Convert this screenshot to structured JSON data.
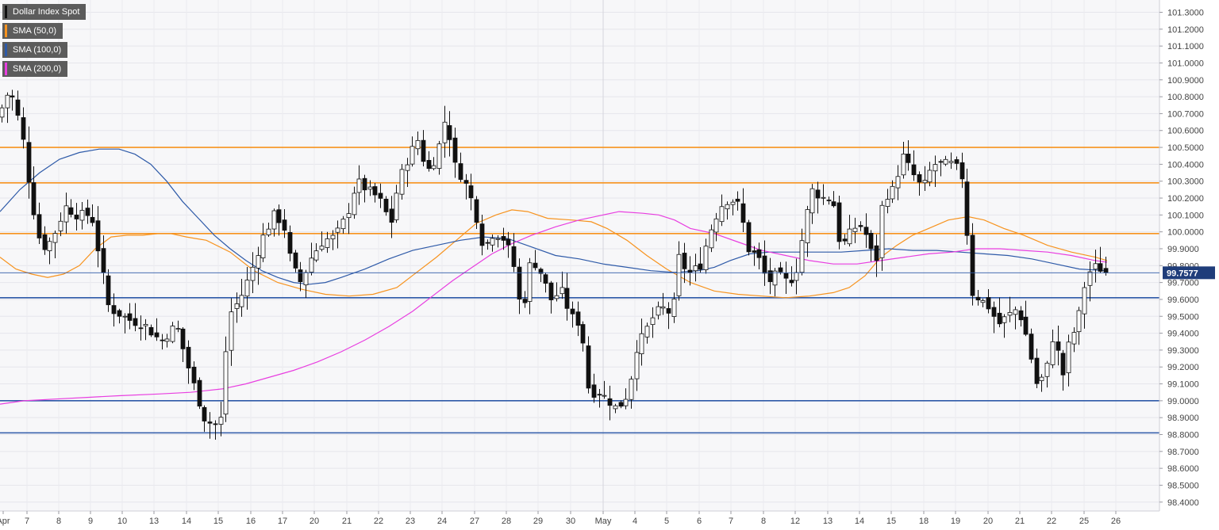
{
  "chart_data": {
    "type": "candlestick",
    "title": "Dollar Index Spot",
    "legend": [
      {
        "label": "Dollar Index Spot",
        "color": "#222222"
      },
      {
        "label": "SMA (50,0)",
        "color": "#f7931e"
      },
      {
        "label": "SMA (100,0)",
        "color": "#2e5aa8"
      },
      {
        "label": "SMA (200,0)",
        "color": "#e83ee0"
      }
    ],
    "y_axis": {
      "ylim": [
        98.33,
        101.37
      ],
      "ticks": [
        "101.3000",
        "101.2000",
        "101.1000",
        "101.0000",
        "100.9000",
        "100.8000",
        "100.7000",
        "100.6000",
        "100.5000",
        "100.4000",
        "100.3000",
        "100.2000",
        "100.1000",
        "100.0000",
        "99.9000",
        "99.8000",
        "99.7000",
        "99.6000",
        "99.5000",
        "99.4000",
        "99.3000",
        "99.2000",
        "99.1000",
        "99.0000",
        "98.9000",
        "98.8000",
        "98.7000",
        "98.6000",
        "98.5000",
        "98.4000"
      ]
    },
    "x_axis": {
      "labels": [
        "Apr",
        "7",
        "8",
        "9",
        "10",
        "13",
        "14",
        "15",
        "16",
        "17",
        "20",
        "21",
        "22",
        "23",
        "24",
        "27",
        "28",
        "29",
        "30",
        "May",
        "4",
        "5",
        "6",
        "7",
        "8",
        "12",
        "13",
        "14",
        "15",
        "18",
        "19",
        "20",
        "21",
        "22",
        "25",
        "26"
      ],
      "grid": "vertical at each date",
      "month_separator": "May"
    },
    "current_price": "99.7577",
    "horizontal_levels": [
      {
        "value": 100.5,
        "color": "#f7931e"
      },
      {
        "value": 100.29,
        "color": "#f7931e"
      },
      {
        "value": 99.99,
        "color": "#f7931e"
      },
      {
        "value": 99.61,
        "color": "#2e5aa8"
      },
      {
        "value": 99.0,
        "color": "#2e5aa8"
      },
      {
        "value": 98.81,
        "color": "#2e5aa8"
      }
    ],
    "sma_series": [
      {
        "name": "SMA (50,0)",
        "color": "#f7931e",
        "points": [
          [
            0,
            99.85
          ],
          [
            20,
            99.78
          ],
          [
            40,
            99.75
          ],
          [
            60,
            99.73
          ],
          [
            80,
            99.75
          ],
          [
            100,
            99.8
          ],
          [
            120,
            99.9
          ],
          [
            140,
            99.97
          ],
          [
            160,
            99.98
          ],
          [
            180,
            99.98
          ],
          [
            200,
            99.99
          ],
          [
            215,
            99.99
          ],
          [
            235,
            99.97
          ],
          [
            260,
            99.95
          ],
          [
            290,
            99.88
          ],
          [
            320,
            99.77
          ],
          [
            350,
            99.7
          ],
          [
            380,
            99.66
          ],
          [
            410,
            99.63
          ],
          [
            440,
            99.62
          ],
          [
            470,
            99.63
          ],
          [
            500,
            99.67
          ],
          [
            525,
            99.76
          ],
          [
            550,
            99.85
          ],
          [
            575,
            99.95
          ],
          [
            600,
            100.05
          ],
          [
            625,
            100.1
          ],
          [
            645,
            100.13
          ],
          [
            665,
            100.12
          ],
          [
            690,
            100.08
          ],
          [
            720,
            100.07
          ],
          [
            745,
            100.06
          ],
          [
            765,
            100.02
          ],
          [
            790,
            99.95
          ],
          [
            815,
            99.86
          ],
          [
            840,
            99.78
          ],
          [
            870,
            99.7
          ],
          [
            900,
            99.65
          ],
          [
            930,
            99.63
          ],
          [
            960,
            99.62
          ],
          [
            990,
            99.61
          ],
          [
            1020,
            99.62
          ],
          [
            1050,
            99.64
          ],
          [
            1070,
            99.67
          ],
          [
            1090,
            99.74
          ],
          [
            1110,
            99.85
          ],
          [
            1130,
            99.92
          ],
          [
            1150,
            99.98
          ],
          [
            1170,
            100.02
          ],
          [
            1195,
            100.07
          ],
          [
            1220,
            100.09
          ],
          [
            1240,
            100.07
          ],
          [
            1265,
            100.02
          ],
          [
            1290,
            99.98
          ],
          [
            1320,
            99.92
          ],
          [
            1350,
            99.88
          ],
          [
            1380,
            99.85
          ],
          [
            1395,
            99.83
          ]
        ]
      },
      {
        "name": "SMA (100,0)",
        "color": "#2e5aa8",
        "points": [
          [
            0,
            100.12
          ],
          [
            25,
            100.25
          ],
          [
            50,
            100.35
          ],
          [
            75,
            100.43
          ],
          [
            100,
            100.47
          ],
          [
            125,
            100.49
          ],
          [
            150,
            100.49
          ],
          [
            170,
            100.46
          ],
          [
            190,
            100.4
          ],
          [
            210,
            100.3
          ],
          [
            230,
            100.18
          ],
          [
            250,
            100.08
          ],
          [
            270,
            99.98
          ],
          [
            290,
            99.9
          ],
          [
            310,
            99.83
          ],
          [
            330,
            99.77
          ],
          [
            350,
            99.73
          ],
          [
            370,
            99.7
          ],
          [
            390,
            99.69
          ],
          [
            410,
            99.7
          ],
          [
            430,
            99.73
          ],
          [
            460,
            99.78
          ],
          [
            490,
            99.84
          ],
          [
            520,
            99.89
          ],
          [
            550,
            99.92
          ],
          [
            580,
            99.95
          ],
          [
            610,
            99.97
          ],
          [
            640,
            99.96
          ],
          [
            670,
            99.91
          ],
          [
            700,
            99.86
          ],
          [
            730,
            99.84
          ],
          [
            760,
            99.81
          ],
          [
            790,
            99.79
          ],
          [
            820,
            99.77
          ],
          [
            850,
            99.76
          ],
          [
            880,
            99.77
          ],
          [
            900,
            99.79
          ],
          [
            920,
            99.83
          ],
          [
            945,
            99.87
          ],
          [
            970,
            99.88
          ],
          [
            1000,
            99.88
          ],
          [
            1030,
            99.88
          ],
          [
            1060,
            99.88
          ],
          [
            1090,
            99.89
          ],
          [
            1120,
            99.9
          ],
          [
            1150,
            99.89
          ],
          [
            1180,
            99.89
          ],
          [
            1210,
            99.88
          ],
          [
            1240,
            99.87
          ],
          [
            1270,
            99.86
          ],
          [
            1300,
            99.84
          ],
          [
            1330,
            99.81
          ],
          [
            1360,
            99.78
          ],
          [
            1395,
            99.77
          ]
        ]
      },
      {
        "name": "SMA (200,0)",
        "color": "#e83ee0",
        "points": [
          [
            0,
            98.98
          ],
          [
            30,
            99.0
          ],
          [
            70,
            99.01
          ],
          [
            110,
            99.02
          ],
          [
            150,
            99.03
          ],
          [
            200,
            99.04
          ],
          [
            240,
            99.05
          ],
          [
            280,
            99.07
          ],
          [
            310,
            99.1
          ],
          [
            340,
            99.14
          ],
          [
            370,
            99.18
          ],
          [
            400,
            99.23
          ],
          [
            430,
            99.29
          ],
          [
            460,
            99.36
          ],
          [
            490,
            99.44
          ],
          [
            520,
            99.53
          ],
          [
            545,
            99.62
          ],
          [
            570,
            99.71
          ],
          [
            595,
            99.79
          ],
          [
            620,
            99.87
          ],
          [
            645,
            99.93
          ],
          [
            670,
            99.98
          ],
          [
            700,
            100.03
          ],
          [
            730,
            100.07
          ],
          [
            760,
            100.1
          ],
          [
            780,
            100.12
          ],
          [
            810,
            100.11
          ],
          [
            830,
            100.1
          ],
          [
            850,
            100.07
          ],
          [
            870,
            100.02
          ],
          [
            900,
            99.99
          ],
          [
            930,
            99.94
          ],
          [
            960,
            99.89
          ],
          [
            990,
            99.86
          ],
          [
            1020,
            99.83
          ],
          [
            1050,
            99.81
          ],
          [
            1080,
            99.81
          ],
          [
            1110,
            99.83
          ],
          [
            1140,
            99.85
          ],
          [
            1170,
            99.87
          ],
          [
            1200,
            99.88
          ],
          [
            1230,
            99.9
          ],
          [
            1260,
            99.9
          ],
          [
            1290,
            99.89
          ],
          [
            1320,
            99.88
          ],
          [
            1350,
            99.86
          ],
          [
            1380,
            99.83
          ],
          [
            1395,
            99.82
          ]
        ]
      }
    ]
  }
}
